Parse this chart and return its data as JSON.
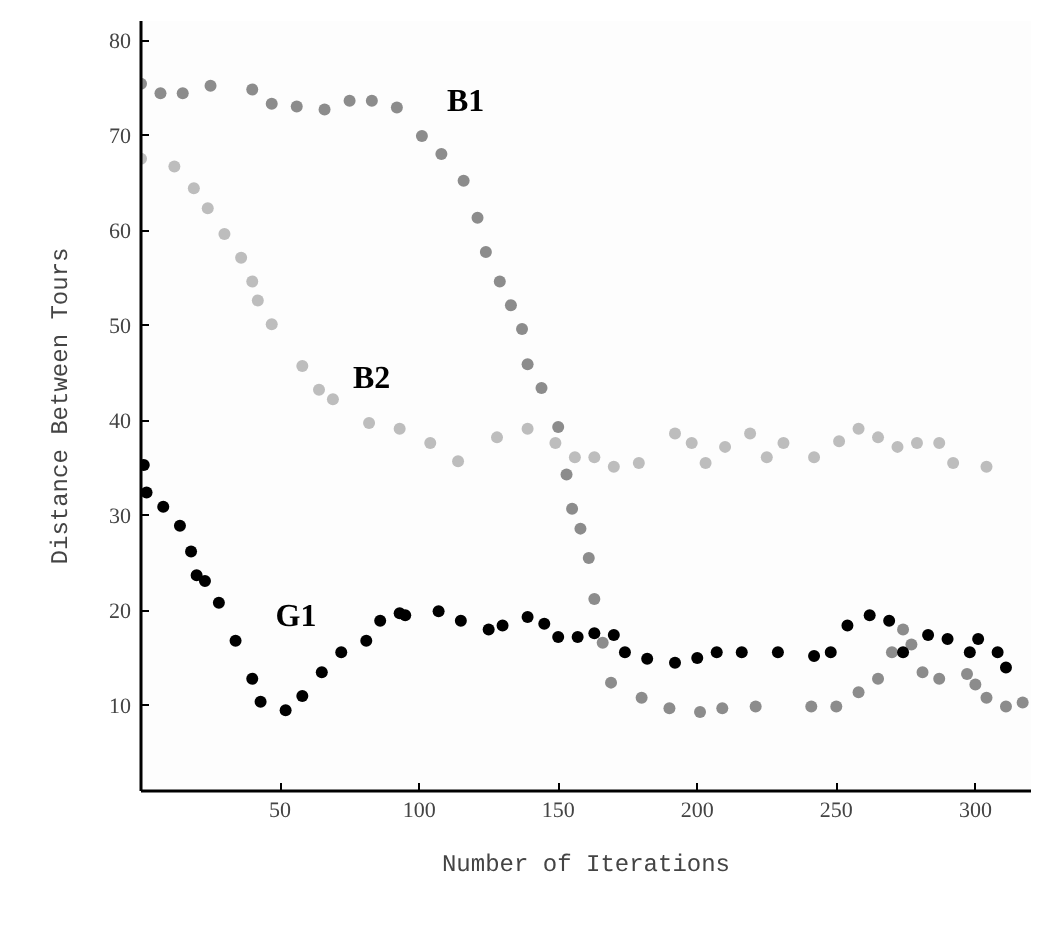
{
  "chart_data": {
    "type": "scatter",
    "xlabel": "Number of Iterations",
    "ylabel": "Distance Between Tours",
    "xlim": [
      0,
      320
    ],
    "ylim": [
      1,
      82
    ],
    "xticks": [
      50,
      100,
      150,
      200,
      250,
      300
    ],
    "yticks": [
      10,
      20,
      30,
      40,
      50,
      60,
      70,
      80
    ],
    "grid": false,
    "marker": "circle",
    "series": [
      {
        "name": "B1",
        "color": "#8c8c8c",
        "x": [
          0,
          7,
          15,
          25,
          40,
          47,
          56,
          66,
          75,
          83,
          92,
          101,
          108,
          116,
          121,
          124,
          129,
          133,
          137,
          139,
          144,
          150,
          153,
          155,
          158,
          161,
          163,
          166,
          169,
          180,
          190,
          201,
          209,
          221,
          241,
          250,
          258,
          265,
          270,
          274,
          277,
          281,
          287,
          297,
          300,
          304,
          311,
          317
        ],
        "values": [
          75.4,
          74.4,
          74.4,
          75.2,
          74.8,
          73.3,
          73,
          72.7,
          73.6,
          73.6,
          72.9,
          69.9,
          68,
          65.2,
          61.3,
          57.7,
          54.6,
          52.1,
          49.6,
          45.9,
          43.4,
          39.3,
          34.3,
          30.7,
          28.6,
          25.5,
          21.2,
          16.6,
          12.4,
          10.8,
          9.7,
          9.3,
          9.7,
          9.9,
          9.9,
          9.9,
          11.4,
          12.8,
          15.6,
          18,
          16.4,
          13.5,
          12.8,
          13.3,
          12.2,
          10.8,
          9.9,
          10.3
        ]
      },
      {
        "name": "B2",
        "color": "#bdbdbd",
        "x": [
          0,
          12,
          19,
          24,
          30,
          36,
          40,
          42,
          47,
          58,
          64,
          69,
          82,
          93,
          104,
          114,
          128,
          139,
          149,
          156,
          163,
          170,
          179,
          192,
          198,
          203,
          210,
          219,
          225,
          231,
          242,
          251,
          258,
          265,
          272,
          279,
          287,
          292,
          304
        ],
        "values": [
          67.5,
          66.7,
          64.4,
          62.3,
          59.6,
          57.1,
          54.6,
          52.6,
          50.1,
          45.7,
          43.2,
          42.2,
          39.7,
          39.1,
          37.6,
          35.7,
          38.2,
          39.1,
          37.6,
          36.1,
          36.1,
          35.1,
          35.5,
          38.6,
          37.6,
          35.5,
          37.2,
          38.6,
          36.1,
          37.6,
          36.1,
          37.8,
          39.1,
          38.2,
          37.2,
          37.6,
          37.6,
          35.5,
          35.1
        ]
      },
      {
        "name": "G1",
        "color": "#000000",
        "x": [
          1,
          2,
          8,
          14,
          18,
          20,
          23,
          28,
          34,
          40,
          43,
          52,
          58,
          65,
          72,
          81,
          86,
          93,
          95,
          107,
          115,
          125,
          130,
          139,
          145,
          150,
          157,
          163,
          170,
          174,
          182,
          192,
          200,
          207,
          216,
          229,
          242,
          248,
          254,
          262,
          269,
          274,
          283,
          290,
          298,
          301,
          308,
          311
        ],
        "values": [
          35.3,
          32.4,
          30.9,
          28.9,
          26.2,
          23.7,
          23.1,
          20.8,
          16.8,
          12.8,
          10.4,
          9.5,
          11,
          13.5,
          15.6,
          16.8,
          18.9,
          19.7,
          19.5,
          19.9,
          18.9,
          18,
          18.4,
          19.3,
          18.6,
          17.2,
          17.2,
          17.6,
          17.4,
          15.6,
          14.9,
          14.5,
          15,
          15.6,
          15.6,
          15.6,
          15.2,
          15.6,
          18.4,
          19.5,
          18.9,
          15.6,
          17.4,
          17,
          15.6,
          17,
          15.6,
          14
        ]
      }
    ]
  }
}
